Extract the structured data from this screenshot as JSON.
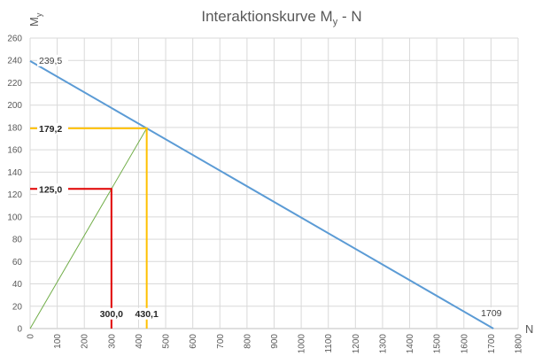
{
  "chart_data": {
    "type": "line",
    "title": "Interaktionskurve M",
    "title_sub": "y",
    "title_suffix": " - N",
    "xlabel": "N",
    "ylabel": "M",
    "ylabel_sub": "y",
    "xlim": [
      0,
      1800
    ],
    "ylim": [
      0,
      260
    ],
    "xticks": [
      0,
      100,
      200,
      300,
      400,
      500,
      600,
      700,
      800,
      900,
      1000,
      1100,
      1200,
      1300,
      1400,
      1500,
      1600,
      1700,
      1800
    ],
    "yticks": [
      0,
      20,
      40,
      60,
      80,
      100,
      120,
      140,
      160,
      180,
      200,
      220,
      240,
      260
    ],
    "grid": true,
    "series": [
      {
        "color": "#5b9bd5",
        "points": [
          [
            0,
            239.5
          ],
          [
            1709,
            0
          ]
        ],
        "labels": [
          {
            "x": 0,
            "y": 239.5,
            "text": "239,5"
          },
          {
            "x": 1709,
            "y": 0,
            "text": "1709"
          }
        ]
      },
      {
        "color": "#70ad47",
        "points": [
          [
            0,
            0
          ],
          [
            430.1,
            179.2
          ]
        ]
      },
      {
        "color": "#ffc000",
        "points": [
          [
            0,
            179.2
          ],
          [
            430.1,
            179.2
          ],
          [
            430.1,
            0
          ]
        ],
        "labels": [
          {
            "x": 0,
            "y": 179.2,
            "text": "179,2"
          },
          {
            "x": 430.1,
            "y": 0,
            "text": "430,1"
          }
        ]
      },
      {
        "color": "#e00000",
        "points": [
          [
            0,
            125.0
          ],
          [
            300.0,
            125.0
          ],
          [
            300.0,
            0
          ]
        ],
        "labels": [
          {
            "x": 0,
            "y": 125.0,
            "text": "125,0"
          },
          {
            "x": 300.0,
            "y": 0,
            "text": "300,0"
          }
        ]
      }
    ]
  }
}
